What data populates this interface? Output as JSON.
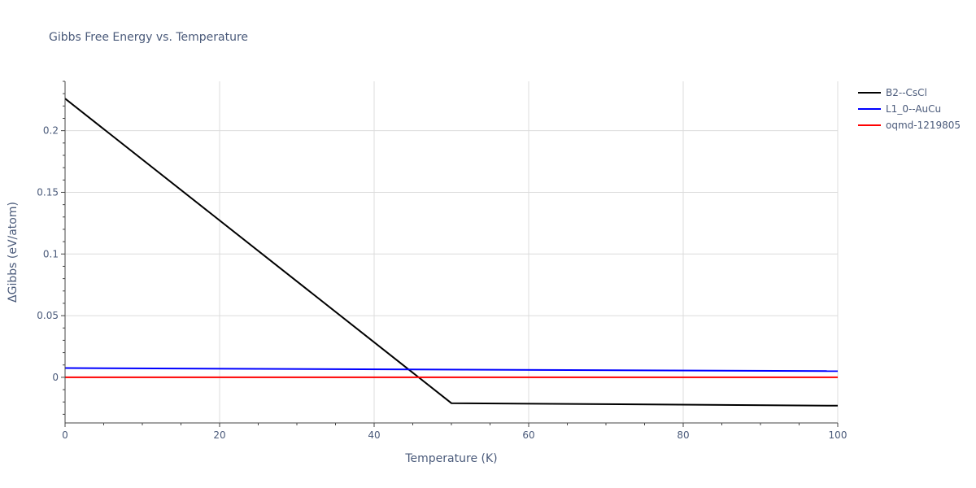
{
  "chart_data": {
    "type": "line",
    "title": "Gibbs Free Energy vs. Temperature",
    "xlabel": "Temperature (K)",
    "ylabel": "ΔGibbs (eV/atom)",
    "xlim": [
      0,
      100
    ],
    "ylim": [
      -0.037,
      0.24
    ],
    "x_ticks": [
      0,
      20,
      40,
      60,
      80,
      100
    ],
    "x_tick_labels": [
      "0",
      "20",
      "40",
      "60",
      "80",
      "100"
    ],
    "y_ticks": [
      0,
      0.05,
      0.1,
      0.15,
      0.2
    ],
    "y_tick_labels": [
      "0",
      "0.05",
      "0.1",
      "0.15",
      "0.2"
    ],
    "grid": true,
    "legend_position": "top-right",
    "series": [
      {
        "name": "B2--CsCl",
        "color": "#000000",
        "x": [
          0,
          50,
          100
        ],
        "y": [
          0.226,
          -0.021,
          -0.023
        ]
      },
      {
        "name": "L1_0--AuCu",
        "color": "#0000ff",
        "x": [
          0,
          100
        ],
        "y": [
          0.0075,
          0.005
        ]
      },
      {
        "name": "oqmd-1219805",
        "color": "#ff0000",
        "x": [
          0,
          100
        ],
        "y": [
          0.0,
          0.0
        ]
      }
    ]
  }
}
